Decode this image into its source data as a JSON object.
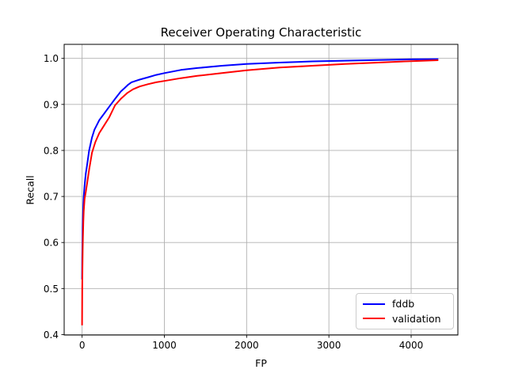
{
  "figure": {
    "background": "#ffffff",
    "text_color": "#000000",
    "axes_edge_color": "#000000"
  },
  "chart_data": {
    "type": "line",
    "title": "Receiver Operating Characteristic",
    "xlabel": "FP",
    "ylabel": "Recall",
    "xlim": [
      -218,
      4568
    ],
    "ylim": [
      0.399,
      1.0305
    ],
    "x_ticks": [
      0,
      1000,
      2000,
      3000,
      4000
    ],
    "y_ticks": [
      0.4,
      0.5,
      0.6,
      0.7,
      0.8,
      0.9,
      1.0
    ],
    "grid": true,
    "grid_color": "#b0b0b0",
    "legend": {
      "position": "lower right",
      "border_color": "#cccccc"
    },
    "series": [
      {
        "name": "fddb",
        "color": "#0000ff",
        "points": [
          [
            0,
            0.52
          ],
          [
            2,
            0.565
          ],
          [
            4,
            0.6
          ],
          [
            7,
            0.632
          ],
          [
            10,
            0.655
          ],
          [
            15,
            0.682
          ],
          [
            20,
            0.7
          ],
          [
            30,
            0.724
          ],
          [
            45,
            0.75
          ],
          [
            60,
            0.768
          ],
          [
            85,
            0.8
          ],
          [
            120,
            0.828
          ],
          [
            150,
            0.845
          ],
          [
            210,
            0.866
          ],
          [
            260,
            0.878
          ],
          [
            330,
            0.895
          ],
          [
            400,
            0.912
          ],
          [
            470,
            0.928
          ],
          [
            520,
            0.936
          ],
          [
            560,
            0.943
          ],
          [
            600,
            0.948
          ],
          [
            650,
            0.951
          ],
          [
            700,
            0.954
          ],
          [
            800,
            0.959
          ],
          [
            900,
            0.964
          ],
          [
            1000,
            0.968
          ],
          [
            1200,
            0.975
          ],
          [
            1400,
            0.979
          ],
          [
            1700,
            0.984
          ],
          [
            2000,
            0.988
          ],
          [
            2400,
            0.991
          ],
          [
            2800,
            0.9935
          ],
          [
            3200,
            0.995
          ],
          [
            3600,
            0.9965
          ],
          [
            4000,
            0.998
          ],
          [
            4330,
            0.9985
          ]
        ]
      },
      {
        "name": "validation",
        "color": "#ff0000",
        "points": [
          [
            0,
            0.42
          ],
          [
            2,
            0.5
          ],
          [
            4,
            0.545
          ],
          [
            7,
            0.585
          ],
          [
            10,
            0.612
          ],
          [
            15,
            0.645
          ],
          [
            20,
            0.668
          ],
          [
            30,
            0.695
          ],
          [
            45,
            0.71
          ],
          [
            60,
            0.728
          ],
          [
            85,
            0.758
          ],
          [
            120,
            0.795
          ],
          [
            160,
            0.818
          ],
          [
            210,
            0.838
          ],
          [
            260,
            0.852
          ],
          [
            330,
            0.872
          ],
          [
            400,
            0.898
          ],
          [
            470,
            0.912
          ],
          [
            550,
            0.925
          ],
          [
            620,
            0.933
          ],
          [
            700,
            0.939
          ],
          [
            800,
            0.944
          ],
          [
            900,
            0.948
          ],
          [
            1000,
            0.951
          ],
          [
            1200,
            0.957
          ],
          [
            1400,
            0.962
          ],
          [
            1700,
            0.968
          ],
          [
            2000,
            0.974
          ],
          [
            2400,
            0.98
          ],
          [
            2800,
            0.984
          ],
          [
            3200,
            0.988
          ],
          [
            3600,
            0.991
          ],
          [
            4000,
            0.994
          ],
          [
            4330,
            0.996
          ]
        ]
      }
    ]
  }
}
